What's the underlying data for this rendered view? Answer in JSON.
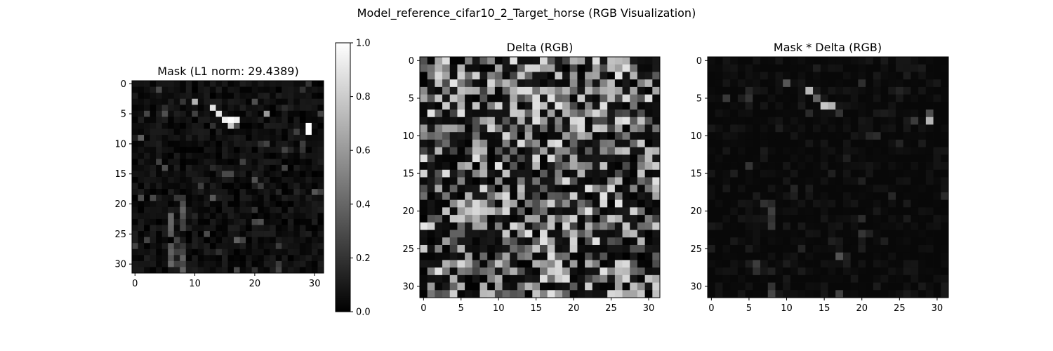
{
  "figure": {
    "suptitle": "Model_reference_cifar10_2_Target_horse (RGB Visualization)"
  },
  "chart_data": [
    {
      "type": "heatmap",
      "title": "Mask (L1 norm: 29.4389)",
      "colormap": "gray",
      "grid": false,
      "xlim": [
        0,
        31
      ],
      "ylim": [
        0,
        31
      ],
      "y_inverted": true,
      "x_ticks": [
        "0",
        "10",
        "20",
        "30"
      ],
      "y_ticks": [
        "0",
        "5",
        "10",
        "15",
        "20",
        "25",
        "30"
      ],
      "colorbar": {
        "range": [
          0.0,
          1.0
        ],
        "ticks": [
          "0.0",
          "0.2",
          "0.4",
          "0.6",
          "0.8",
          "1.0"
        ]
      },
      "bright_pixels": [
        {
          "row": 3,
          "col": 10,
          "value": 0.7
        },
        {
          "row": 4,
          "col": 13,
          "value": 0.9
        },
        {
          "row": 5,
          "col": 14,
          "value": 0.9
        },
        {
          "row": 6,
          "col": 15,
          "value": 0.95
        },
        {
          "row": 6,
          "col": 16,
          "value": 1.0
        },
        {
          "row": 6,
          "col": 17,
          "value": 0.95
        },
        {
          "row": 7,
          "col": 16,
          "value": 0.8
        },
        {
          "row": 5,
          "col": 22,
          "value": 0.6
        },
        {
          "row": 7,
          "col": 29,
          "value": 1.0
        },
        {
          "row": 8,
          "col": 29,
          "value": 1.0
        }
      ]
    },
    {
      "type": "heatmap",
      "title": "Delta (RGB)",
      "colormap": "gray",
      "grid": false,
      "xlim": [
        0,
        31
      ],
      "ylim": [
        0,
        31
      ],
      "y_inverted": true,
      "x_ticks": [
        "0",
        "5",
        "10",
        "15",
        "20",
        "25",
        "30"
      ],
      "y_ticks": [
        "0",
        "5",
        "10",
        "15",
        "20",
        "25",
        "30"
      ]
    },
    {
      "type": "heatmap",
      "title": "Mask * Delta (RGB)",
      "colormap": "gray",
      "grid": false,
      "xlim": [
        0,
        31
      ],
      "ylim": [
        0,
        31
      ],
      "y_inverted": true,
      "x_ticks": [
        "0",
        "5",
        "10",
        "15",
        "20",
        "25",
        "30"
      ],
      "y_ticks": [
        "0",
        "5",
        "10",
        "15",
        "20",
        "25",
        "30"
      ]
    }
  ]
}
